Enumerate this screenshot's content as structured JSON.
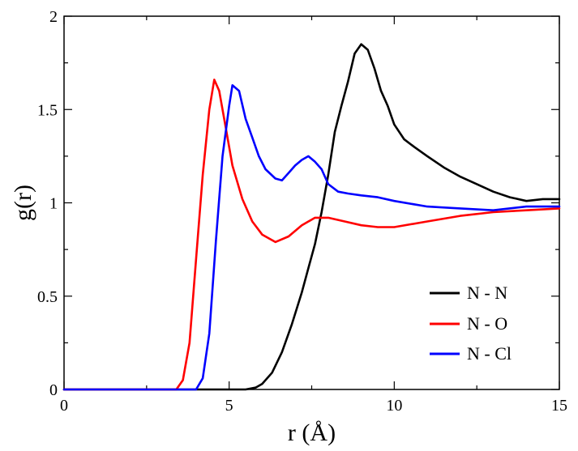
{
  "chart_data": {
    "type": "line",
    "title": "",
    "xlabel": "r (Å)",
    "ylabel": "g(r)",
    "xlim": [
      0,
      15
    ],
    "ylim": [
      0,
      2
    ],
    "xticks": [
      0,
      5,
      10,
      15
    ],
    "xtick_labels": [
      "0",
      "5",
      "10",
      "15"
    ],
    "yticks": [
      0,
      0.5,
      1,
      1.5,
      2
    ],
    "ytick_labels": [
      "0",
      "0.5",
      "1",
      "1.5",
      "2"
    ],
    "grid": false,
    "legend_position": "bottom-right",
    "series": [
      {
        "name": "N - N",
        "color": "#000000",
        "x": [
          0,
          5.5,
          5.8,
          6.0,
          6.3,
          6.6,
          6.9,
          7.2,
          7.4,
          7.6,
          7.8,
          8.0,
          8.2,
          8.4,
          8.6,
          8.8,
          9.0,
          9.2,
          9.4,
          9.6,
          9.8,
          10.0,
          10.3,
          10.6,
          11.0,
          11.5,
          12.0,
          12.5,
          13.0,
          13.5,
          14.0,
          14.5,
          15.0
        ],
        "y": [
          0,
          0,
          0.01,
          0.03,
          0.09,
          0.2,
          0.35,
          0.52,
          0.65,
          0.78,
          0.95,
          1.15,
          1.38,
          1.52,
          1.65,
          1.8,
          1.85,
          1.82,
          1.72,
          1.6,
          1.52,
          1.42,
          1.34,
          1.3,
          1.25,
          1.19,
          1.14,
          1.1,
          1.06,
          1.03,
          1.01,
          1.02,
          1.02
        ]
      },
      {
        "name": "N - O",
        "color": "#ff0000",
        "x": [
          0,
          3.4,
          3.6,
          3.8,
          4.0,
          4.2,
          4.4,
          4.55,
          4.7,
          4.9,
          5.1,
          5.4,
          5.7,
          6.0,
          6.4,
          6.8,
          7.2,
          7.6,
          8.0,
          8.5,
          9.0,
          9.5,
          10.0,
          11.0,
          12.0,
          13.0,
          14.0,
          15.0
        ],
        "y": [
          0,
          0,
          0.05,
          0.25,
          0.7,
          1.15,
          1.5,
          1.66,
          1.6,
          1.4,
          1.2,
          1.02,
          0.9,
          0.83,
          0.79,
          0.82,
          0.88,
          0.92,
          0.92,
          0.9,
          0.88,
          0.87,
          0.87,
          0.9,
          0.93,
          0.95,
          0.96,
          0.97
        ]
      },
      {
        "name": "N - Cl",
        "color": "#0000ff",
        "x": [
          0,
          4.0,
          4.2,
          4.4,
          4.6,
          4.8,
          5.0,
          5.1,
          5.3,
          5.5,
          5.7,
          5.9,
          6.1,
          6.4,
          6.6,
          6.8,
          7.0,
          7.2,
          7.4,
          7.6,
          7.8,
          8.0,
          8.3,
          8.6,
          9.0,
          9.5,
          10.0,
          11.0,
          12.0,
          13.0,
          14.0,
          15.0
        ],
        "y": [
          0,
          0,
          0.06,
          0.3,
          0.8,
          1.25,
          1.52,
          1.63,
          1.6,
          1.45,
          1.35,
          1.25,
          1.18,
          1.13,
          1.12,
          1.16,
          1.2,
          1.23,
          1.25,
          1.22,
          1.18,
          1.1,
          1.06,
          1.05,
          1.04,
          1.03,
          1.01,
          0.98,
          0.97,
          0.96,
          0.98,
          0.98
        ]
      }
    ]
  }
}
